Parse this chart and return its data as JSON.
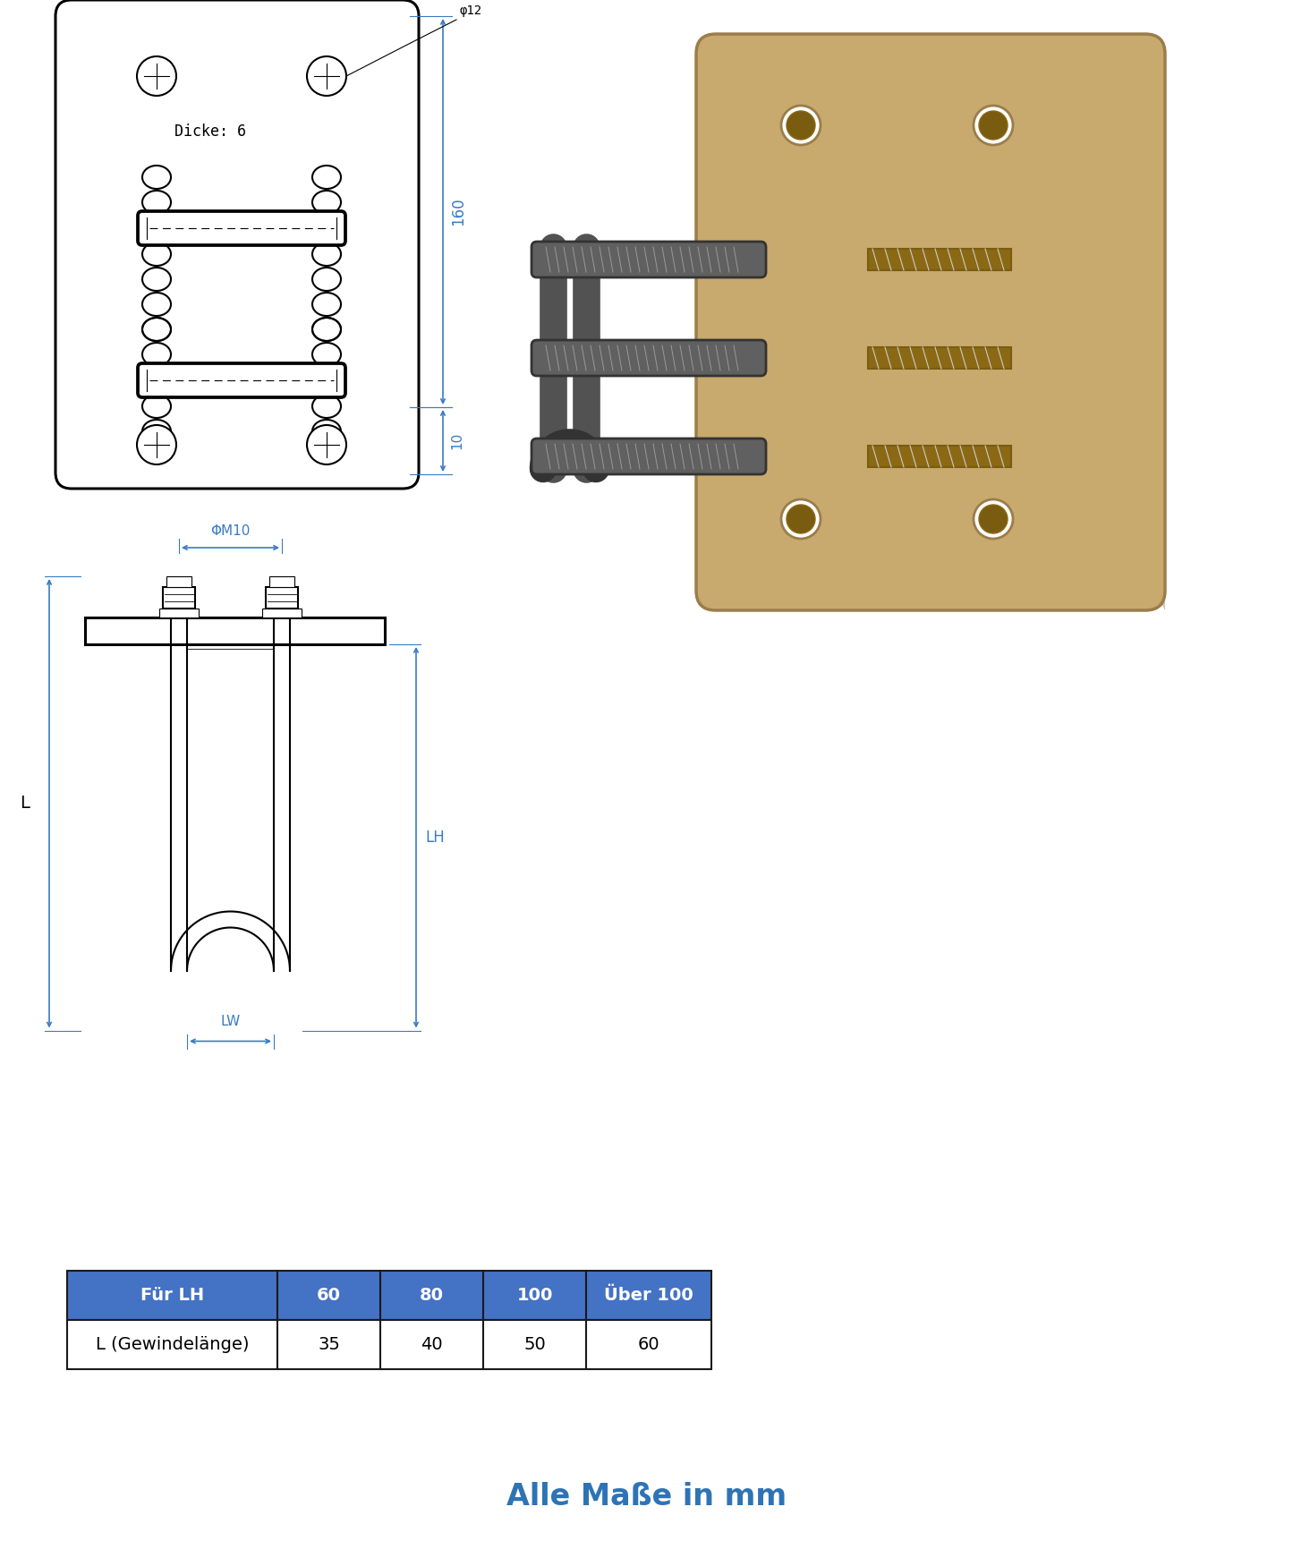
{
  "bg_color": "#ffffff",
  "title_bottom": "Alle Maße in mm",
  "title_color": "#2E74B5",
  "title_fontsize": 24,
  "table_header_bg": "#4472C4",
  "table_header_fg": "#ffffff",
  "table_row_bg": "#ffffff",
  "table_row_fg": "#000000",
  "table_border": "#222222",
  "table_cols": [
    "Für LH",
    "60",
    "80",
    "100",
    "Über 100"
  ],
  "table_row1": [
    "L (Gewindelänge)",
    "35",
    "40",
    "50",
    "60"
  ],
  "dim_color": "#3A7AC4",
  "line_color": "#000000",
  "dim_text_160": "160",
  "dim_text_10": "10",
  "dim_text_phi12": "φ12",
  "dim_text_phiM10": "ΦM10",
  "label_dicke": "Dicke: 6",
  "label_L": "L",
  "label_LH": "LH",
  "label_LW": "LW",
  "plate3d_color": "#C8A96E",
  "plate3d_edge": "#9B7D4A",
  "rod3d_color": "#606060",
  "rod3d_edge": "#333333"
}
